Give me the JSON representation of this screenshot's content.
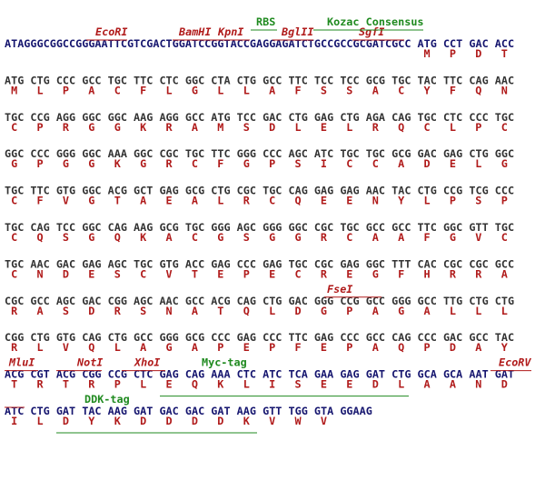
{
  "lines": [
    {
      "dna": "ATAGGGCGGCCGGGAATTCGTCGACTGGATCCGGTACCGAGGAGATCTGCCGCCGCGATCGCC ATG CCT GAC ACC",
      "color": "#14146e",
      "protein": [
        "M",
        "P",
        "D",
        "T"
      ],
      "annotations": [
        {
          "text": "EcoRI",
          "kind": "enzyme"
        },
        {
          "text": "BamHI",
          "kind": "enzyme"
        },
        {
          "text": "KpnI",
          "kind": "enzyme"
        },
        {
          "text": "BglII",
          "kind": "enzyme"
        },
        {
          "text": "SgfI",
          "kind": "enzyme"
        },
        {
          "text": "RBS",
          "kind": "feature"
        },
        {
          "text": "Kozac Consensus",
          "kind": "feature"
        }
      ]
    },
    {
      "dna": "ATG CTG CCC GCC TGC TTC CTC GGC CTA CTG GCC TTC TCC TCC GCG TGC TAC TTC CAG AAC",
      "color": "#333333",
      "protein": [
        "M",
        "L",
        "P",
        "A",
        "C",
        "F",
        "L",
        "G",
        "L",
        "L",
        "A",
        "F",
        "S",
        "S",
        "A",
        "C",
        "Y",
        "F",
        "Q",
        "N"
      ],
      "annotations": []
    },
    {
      "dna": "TGC CCG AGG GGC GGC AAG AGG GCC ATG TCC GAC CTG GAG CTG AGA CAG TGC CTC CCC TGC",
      "color": "#333333",
      "protein": [
        "C",
        "P",
        "R",
        "G",
        "G",
        "K",
        "R",
        "A",
        "M",
        "S",
        "D",
        "L",
        "E",
        "L",
        "R",
        "Q",
        "C",
        "L",
        "P",
        "C"
      ],
      "annotations": []
    },
    {
      "dna": "GGC CCC GGG GGC AAA GGC CGC TGC TTC GGG CCC AGC ATC TGC TGC GCG GAC GAG CTG GGC",
      "color": "#333333",
      "protein": [
        "G",
        "P",
        "G",
        "G",
        "K",
        "G",
        "R",
        "C",
        "F",
        "G",
        "P",
        "S",
        "I",
        "C",
        "C",
        "A",
        "D",
        "E",
        "L",
        "G"
      ],
      "annotations": []
    },
    {
      "dna": "TGC TTC GTG GGC ACG GCT GAG GCG CTG CGC TGC CAG GAG GAG AAC TAC CTG CCG TCG CCC",
      "color": "#333333",
      "protein": [
        "C",
        "F",
        "V",
        "G",
        "T",
        "A",
        "E",
        "A",
        "L",
        "R",
        "C",
        "Q",
        "E",
        "E",
        "N",
        "Y",
        "L",
        "P",
        "S",
        "P"
      ],
      "annotations": []
    },
    {
      "dna": "TGC CAG TCC GGC CAG AAG GCG TGC GGG AGC GGG GGC CGC TGC GCC GCC TTC GGC GTT TGC",
      "color": "#333333",
      "protein": [
        "C",
        "Q",
        "S",
        "G",
        "Q",
        "K",
        "A",
        "C",
        "G",
        "S",
        "G",
        "G",
        "R",
        "C",
        "A",
        "A",
        "F",
        "G",
        "V",
        "C"
      ],
      "annotations": []
    },
    {
      "dna": "TGC AAC GAC GAG AGC TGC GTG ACC GAG CCC GAG TGC CGC GAG GGC TTT CAC CGC CGC GCC",
      "color": "#333333",
      "protein": [
        "C",
        "N",
        "D",
        "E",
        "S",
        "C",
        "V",
        "T",
        "E",
        "P",
        "E",
        "C",
        "R",
        "E",
        "G",
        "F",
        "H",
        "R",
        "R",
        "A"
      ],
      "annotations": []
    },
    {
      "dna": "CGC GCC AGC GAC CGG AGC AAC GCC ACG CAG CTG GAC GGG CCG GCC GGG GCC TTG CTG CTG",
      "color": "#333333",
      "protein": [
        "R",
        "A",
        "S",
        "D",
        "R",
        "S",
        "N",
        "A",
        "T",
        "Q",
        "L",
        "D",
        "G",
        "P",
        "A",
        "G",
        "A",
        "L",
        "L",
        "L"
      ],
      "annotations": [
        {
          "text": "FseI",
          "kind": "enzyme"
        }
      ]
    },
    {
      "dna": "CGG CTG GTG CAG CTG GCC GGG GCG CCC GAG CCC TTC GAG CCC GCC CAG CCC GAC GCC TAC",
      "color": "#333333",
      "protein": [
        "R",
        "L",
        "V",
        "Q",
        "L",
        "A",
        "G",
        "A",
        "P",
        "E",
        "P",
        "F",
        "E",
        "P",
        "A",
        "Q",
        "P",
        "D",
        "A",
        "Y"
      ],
      "annotations": []
    },
    {
      "dna": "ACG CGT ACG CGG CCG CTC GAG CAG AAA CTC ATC TCA GAA GAG GAT CTG GCA GCA AAT GAT",
      "color": "#14146e",
      "protein": [
        "T",
        "R",
        "T",
        "R",
        "P",
        "L",
        "E",
        "Q",
        "K",
        "L",
        "I",
        "S",
        "E",
        "E",
        "D",
        "L",
        "A",
        "A",
        "N",
        "D"
      ],
      "annotations": [
        {
          "text": "MluI",
          "kind": "enzyme"
        },
        {
          "text": "NotI",
          "kind": "enzyme"
        },
        {
          "text": "XhoI",
          "kind": "enzyme"
        },
        {
          "text": "Myc-tag",
          "kind": "feature"
        },
        {
          "text": "EcoRV",
          "kind": "enzyme"
        }
      ]
    },
    {
      "dna": "ATC CTG GAT TAC AAG GAT GAC GAC GAT AAG GTT TGG GTA GGAAG",
      "color": "#14146e",
      "protein": [
        "I",
        "L",
        "D",
        "Y",
        "K",
        "D",
        "D",
        "D",
        "D",
        "K",
        "V",
        "W",
        "V"
      ],
      "annotations": [
        {
          "text": "DDK-tag",
          "kind": "feature"
        }
      ]
    }
  ]
}
